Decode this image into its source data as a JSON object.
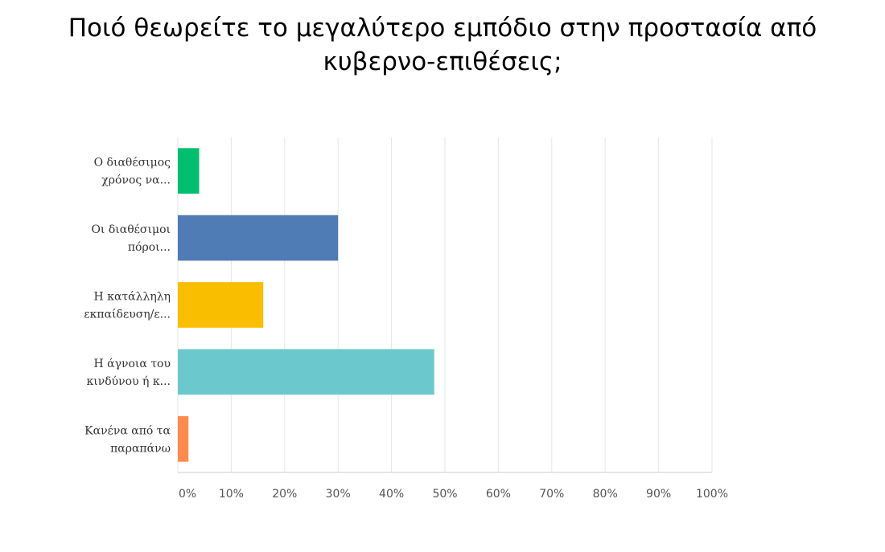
{
  "chart_data": {
    "type": "bar",
    "orientation": "horizontal",
    "title_line1": "Ποιό θεωρείτε το μεγαλύτερο εμπόδιο στην προστασία από",
    "title_line2": "κυβερνο-επιθέσεις;",
    "categories": [
      [
        "Ο διαθέσιμος",
        "χρόνος να..."
      ],
      [
        "Οι διαθέσιμοι",
        "πόροι..."
      ],
      [
        "Η κατάλληλη",
        "εκπαίδευση/ε..."
      ],
      [
        "Η άγνοια του",
        "κινδύνου ή κ..."
      ],
      [
        "Κανένα από τα",
        "παραπάνω"
      ]
    ],
    "values": [
      4,
      30,
      16,
      48,
      2
    ],
    "colors": [
      "#00be6e",
      "#507cb6",
      "#f9be00",
      "#6bc8cd",
      "#ff8b4f"
    ],
    "xlim": [
      0,
      100
    ],
    "xticks": [
      "0%",
      "10%",
      "20%",
      "30%",
      "40%",
      "50%",
      "60%",
      "70%",
      "80%",
      "90%",
      "100%"
    ],
    "grid": true
  }
}
